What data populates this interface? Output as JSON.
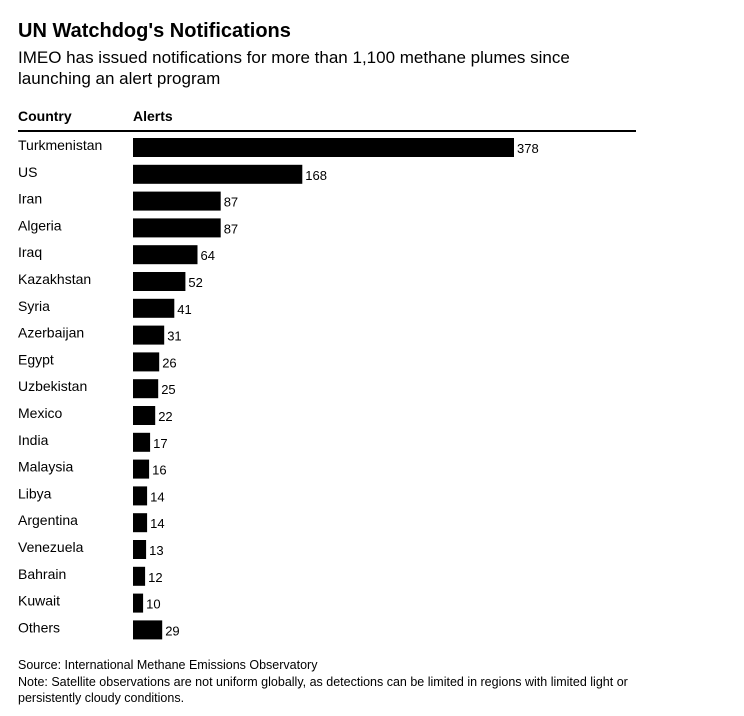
{
  "title": "UN Watchdog's Notifications",
  "subtitle": "IMEO has issued notifications for more than 1,100 methane plumes since launching an alert program",
  "columns": {
    "country": "Country",
    "alerts": "Alerts"
  },
  "source": "Source: International Methane Emissions Observatory",
  "note": "Note: Satellite observations are not uniform globally, as detections can be limited in regions with limited light or persistently cloudy conditions.",
  "colors": {
    "bar": "#000000",
    "text": "#000000",
    "background": "#ffffff"
  },
  "chart_data": {
    "type": "bar",
    "orientation": "horizontal",
    "categories": [
      "Turkmenistan",
      "US",
      "Iran",
      "Algeria",
      "Iraq",
      "Kazakhstan",
      "Syria",
      "Azerbaijan",
      "Egypt",
      "Uzbekistan",
      "Mexico",
      "India",
      "Malaysia",
      "Libya",
      "Argentina",
      "Venezuela",
      "Bahrain",
      "Kuwait",
      "Others"
    ],
    "values": [
      378,
      168,
      87,
      87,
      64,
      52,
      41,
      31,
      26,
      25,
      22,
      17,
      16,
      14,
      14,
      13,
      12,
      10,
      29
    ],
    "xlim": [
      0,
      378
    ],
    "data_labels": true,
    "grid": false,
    "legend": "none"
  }
}
